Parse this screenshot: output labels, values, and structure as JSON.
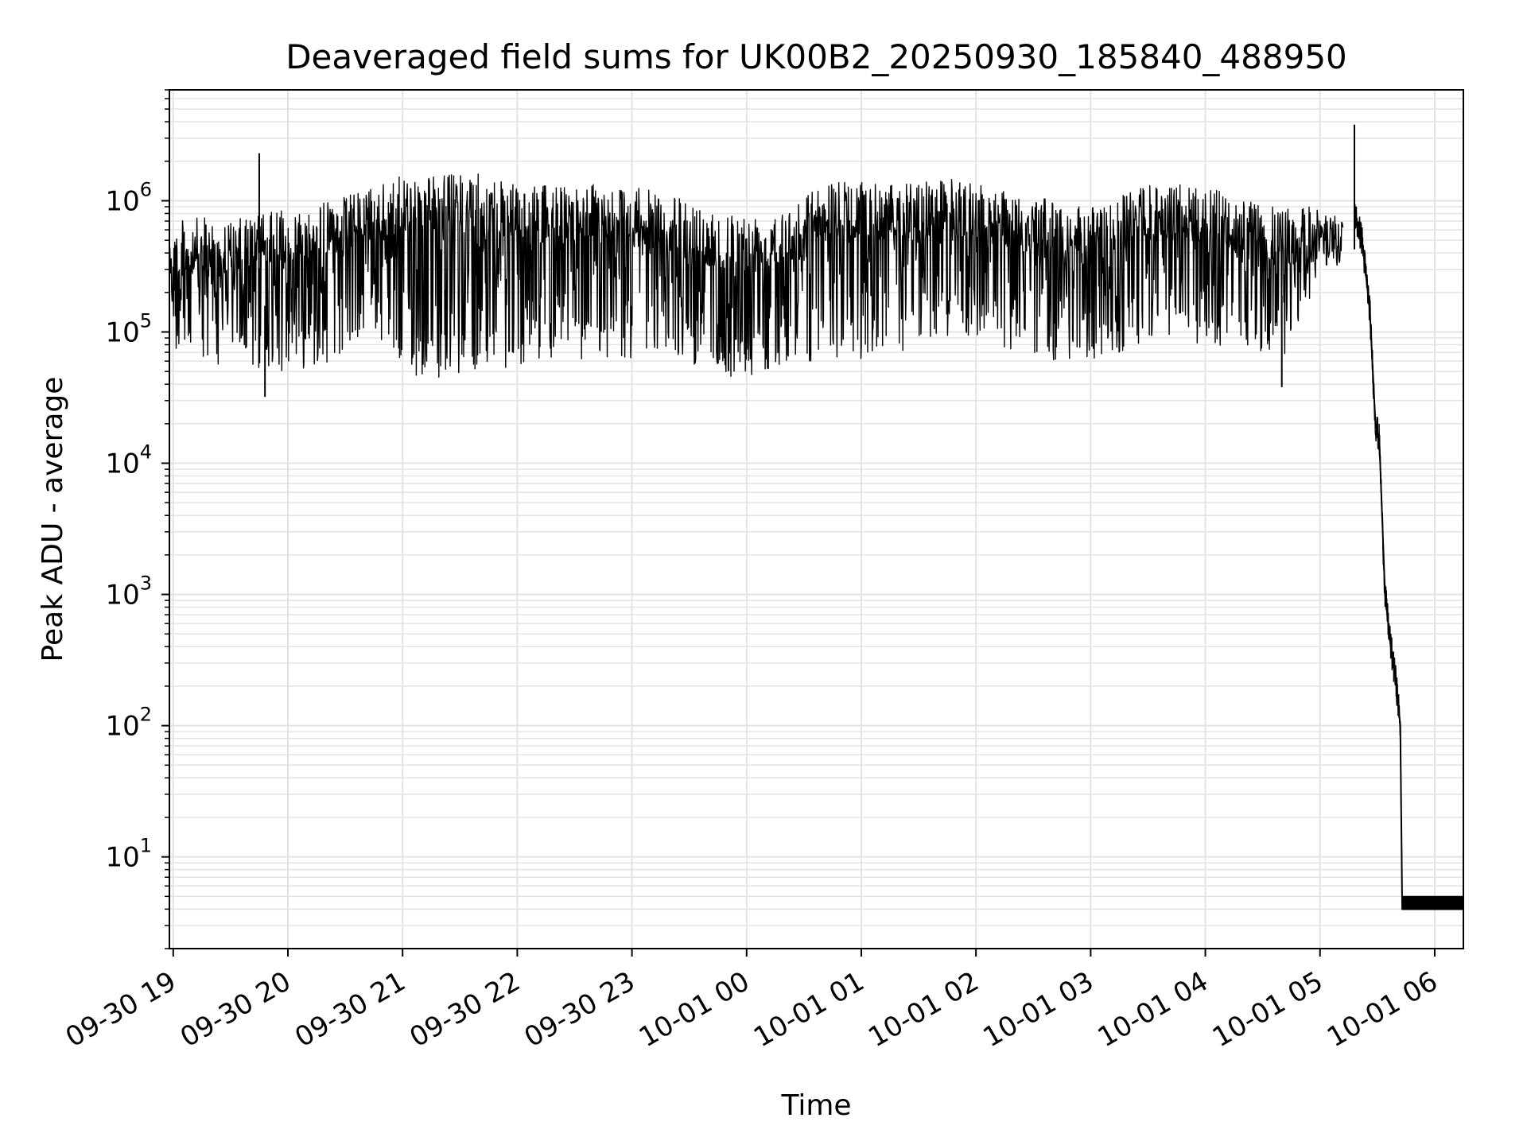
{
  "chart_data": {
    "type": "line",
    "title": "Deaveraged field sums for UK00B2_20250930_185840_488950",
    "xlabel": "Time",
    "ylabel": "Peak ADU - average",
    "y_scale": "log",
    "ylim": [
      2,
      7000000
    ],
    "xlim": [
      "2025-09-30 18:58",
      "2025-10-01 06:15"
    ],
    "grid": true,
    "line_color": "#000000",
    "grid_color": "#e3e3e3",
    "x_ticks": [
      {
        "value": "2025-09-30 19:00",
        "label": "09-30 19"
      },
      {
        "value": "2025-09-30 20:00",
        "label": "09-30 20"
      },
      {
        "value": "2025-09-30 21:00",
        "label": "09-30 21"
      },
      {
        "value": "2025-09-30 22:00",
        "label": "09-30 22"
      },
      {
        "value": "2025-09-30 23:00",
        "label": "09-30 23"
      },
      {
        "value": "2025-10-01 00:00",
        "label": "10-01 00"
      },
      {
        "value": "2025-10-01 01:00",
        "label": "10-01 01"
      },
      {
        "value": "2025-10-01 02:00",
        "label": "10-01 02"
      },
      {
        "value": "2025-10-01 03:00",
        "label": "10-01 03"
      },
      {
        "value": "2025-10-01 04:00",
        "label": "10-01 04"
      },
      {
        "value": "2025-10-01 05:00",
        "label": "10-01 05"
      },
      {
        "value": "2025-10-01 06:00",
        "label": "10-01 06"
      }
    ],
    "y_ticks": [
      {
        "value": 10,
        "base": "10",
        "exp": "1"
      },
      {
        "value": 100,
        "base": "10",
        "exp": "2"
      },
      {
        "value": 1000,
        "base": "10",
        "exp": "3"
      },
      {
        "value": 10000,
        "base": "10",
        "exp": "4"
      },
      {
        "value": 100000,
        "base": "10",
        "exp": "5"
      },
      {
        "value": 1000000,
        "base": "10",
        "exp": "6"
      }
    ],
    "series": [
      {
        "envelope": [
          {
            "x": "2025-09-30 18:58",
            "upper": 700000,
            "lower": 70000
          },
          {
            "x": "2025-09-30 19:15",
            "upper": 750000,
            "lower": 50000
          },
          {
            "x": "2025-09-30 19:30",
            "upper": 700000,
            "lower": 60000
          },
          {
            "x": "2025-09-30 19:45",
            "upper": 800000,
            "lower": 50000
          },
          {
            "x": "2025-09-30 20:00",
            "upper": 850000,
            "lower": 50000
          },
          {
            "x": "2025-09-30 20:15",
            "upper": 950000,
            "lower": 55000
          },
          {
            "x": "2025-09-30 20:30",
            "upper": 1100000,
            "lower": 65000
          },
          {
            "x": "2025-09-30 20:45",
            "upper": 1300000,
            "lower": 100000
          },
          {
            "x": "2025-09-30 21:00",
            "upper": 1550000,
            "lower": 45000
          },
          {
            "x": "2025-09-30 21:20",
            "upper": 1600000,
            "lower": 45000
          },
          {
            "x": "2025-09-30 21:40",
            "upper": 1600000,
            "lower": 50000
          },
          {
            "x": "2025-09-30 22:00",
            "upper": 1300000,
            "lower": 55000
          },
          {
            "x": "2025-09-30 22:20",
            "upper": 1300000,
            "lower": 60000
          },
          {
            "x": "2025-09-30 22:40",
            "upper": 1350000,
            "lower": 60000
          },
          {
            "x": "2025-09-30 23:00",
            "upper": 1300000,
            "lower": 60000
          },
          {
            "x": "2025-09-30 23:20",
            "upper": 1100000,
            "lower": 70000
          },
          {
            "x": "2025-09-30 23:40",
            "upper": 900000,
            "lower": 50000
          },
          {
            "x": "2025-10-01 00:00",
            "upper": 800000,
            "lower": 40000
          },
          {
            "x": "2025-10-01 00:20",
            "upper": 900000,
            "lower": 60000
          },
          {
            "x": "2025-10-01 00:40",
            "upper": 1400000,
            "lower": 60000
          },
          {
            "x": "2025-10-01 01:00",
            "upper": 1400000,
            "lower": 60000
          },
          {
            "x": "2025-10-01 01:20",
            "upper": 1350000,
            "lower": 60000
          },
          {
            "x": "2025-10-01 01:40",
            "upper": 1500000,
            "lower": 90000
          },
          {
            "x": "2025-10-01 02:00",
            "upper": 1400000,
            "lower": 90000
          },
          {
            "x": "2025-10-01 02:20",
            "upper": 1200000,
            "lower": 70000
          },
          {
            "x": "2025-10-01 02:40",
            "upper": 1000000,
            "lower": 60000
          },
          {
            "x": "2025-10-01 03:00",
            "upper": 900000,
            "lower": 60000
          },
          {
            "x": "2025-10-01 03:20",
            "upper": 1200000,
            "lower": 70000
          },
          {
            "x": "2025-10-01 03:40",
            "upper": 1400000,
            "lower": 90000
          },
          {
            "x": "2025-10-01 04:00",
            "upper": 1300000,
            "lower": 80000
          },
          {
            "x": "2025-10-01 04:20",
            "upper": 1000000,
            "lower": 70000
          },
          {
            "x": "2025-10-01 04:40",
            "upper": 900000,
            "lower": 60000
          },
          {
            "x": "2025-10-01 05:00",
            "upper": 900000,
            "lower": 250000
          },
          {
            "x": "2025-10-01 05:12",
            "upper": 850000,
            "lower": 350000
          }
        ],
        "spikes": [
          {
            "x": "2025-09-30 19:45",
            "y": 2300000
          },
          {
            "x": "2025-09-30 19:48",
            "y": 32000
          },
          {
            "x": "2025-10-01 04:40",
            "y": 38000
          },
          {
            "x": "2025-10-01 05:18",
            "y": 3800000
          }
        ],
        "decay": [
          {
            "x": "2025-10-01 05:18",
            "y": 800000
          },
          {
            "x": "2025-10-01 05:22",
            "y": 500000
          },
          {
            "x": "2025-10-01 05:26",
            "y": 150000
          },
          {
            "x": "2025-10-01 05:29",
            "y": 20000
          },
          {
            "x": "2025-10-01 05:31",
            "y": 15000
          },
          {
            "x": "2025-10-01 05:34",
            "y": 1000
          },
          {
            "x": "2025-10-01 05:37",
            "y": 400
          },
          {
            "x": "2025-10-01 05:40",
            "y": 200
          },
          {
            "x": "2025-10-01 05:42",
            "y": 100
          },
          {
            "x": "2025-10-01 05:43",
            "y": 4
          },
          {
            "x": "2025-10-01 06:15",
            "y": 4
          }
        ]
      }
    ]
  }
}
